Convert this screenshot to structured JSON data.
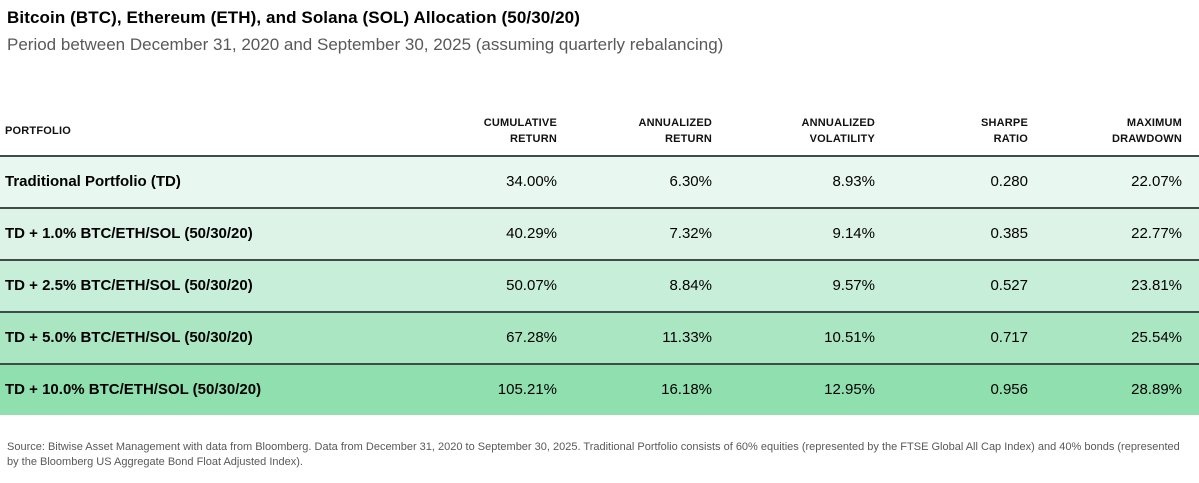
{
  "header": {
    "title": "Bitcoin (BTC), Ethereum (ETH), and Solana (SOL) Allocation (50/30/20)",
    "subtitle": "Period between December 31, 2020 and September 30, 2025 (assuming quarterly rebalancing)"
  },
  "table": {
    "columns": [
      {
        "label": "PORTFOLIO"
      },
      {
        "label": "CUMULATIVE\nRETURN"
      },
      {
        "label": "ANNUALIZED\nRETURN"
      },
      {
        "label": "ANNUALIZED\nVOLATILITY"
      },
      {
        "label": "SHARPE\nRATIO"
      },
      {
        "label": "MAXIMUM\nDRAWDOWN"
      }
    ],
    "cell_keys": [
      "portfolio",
      "cumulative_return",
      "annualized_return",
      "annualized_volatility",
      "sharpe_ratio",
      "maximum_drawdown"
    ],
    "rows": [
      {
        "portfolio": "Traditional Portfolio (TD)",
        "cumulative_return": "34.00%",
        "annualized_return": "6.30%",
        "annualized_volatility": "8.93%",
        "sharpe_ratio": "0.280",
        "maximum_drawdown": "22.07%",
        "color": "#e8f8f0"
      },
      {
        "portfolio": "TD + 1.0% BTC/ETH/SOL (50/30/20)",
        "cumulative_return": "40.29%",
        "annualized_return": "7.32%",
        "annualized_volatility": "9.14%",
        "sharpe_ratio": "0.385",
        "maximum_drawdown": "22.77%",
        "color": "#ddf3e7"
      },
      {
        "portfolio": "TD + 2.5% BTC/ETH/SOL (50/30/20)",
        "cumulative_return": "50.07%",
        "annualized_return": "8.84%",
        "annualized_volatility": "9.57%",
        "sharpe_ratio": "0.527",
        "maximum_drawdown": "23.81%",
        "color": "#c7eed8"
      },
      {
        "portfolio": "TD + 5.0% BTC/ETH/SOL (50/30/20)",
        "cumulative_return": "67.28%",
        "annualized_return": "11.33%",
        "annualized_volatility": "10.51%",
        "sharpe_ratio": "0.717",
        "maximum_drawdown": "25.54%",
        "color": "#abe6c3"
      },
      {
        "portfolio": "TD + 10.0% BTC/ETH/SOL (50/30/20)",
        "cumulative_return": "105.21%",
        "annualized_return": "16.18%",
        "annualized_volatility": "12.95%",
        "sharpe_ratio": "0.956",
        "maximum_drawdown": "28.89%",
        "color": "#8fe0ae"
      }
    ]
  },
  "footnote": "Source: Bitwise Asset Management with data from Bloomberg. Data from December 31, 2020 to September 30, 2025. Traditional Portfolio consists of 60% equities (represented by the FTSE Global All Cap Index) and 40% bonds (represented by the Bloomberg US Aggregate Bond Float Adjusted Index).",
  "colors": {
    "row_separator": "#414b47",
    "subtitle_text": "#595959",
    "footnote_text": "#595959"
  },
  "chart_data": {
    "type": "table",
    "title": "Bitcoin (BTC), Ethereum (ETH), and Solana (SOL) Allocation (50/30/20)",
    "subtitle": "Period between December 31, 2020 and September 30, 2025 (assuming quarterly rebalancing)",
    "columns": [
      "PORTFOLIO",
      "CUMULATIVE RETURN",
      "ANNUALIZED RETURN",
      "ANNUALIZED VOLATILITY",
      "SHARPE RATIO",
      "MAXIMUM DRAWDOWN"
    ],
    "rows": [
      {
        "portfolio": "Traditional Portfolio (TD)",
        "cumulative_return_pct": 34.0,
        "annualized_return_pct": 6.3,
        "annualized_volatility_pct": 8.93,
        "sharpe_ratio": 0.28,
        "maximum_drawdown_pct": 22.07
      },
      {
        "portfolio": "TD + 1.0% BTC/ETH/SOL (50/30/20)",
        "cumulative_return_pct": 40.29,
        "annualized_return_pct": 7.32,
        "annualized_volatility_pct": 9.14,
        "sharpe_ratio": 0.385,
        "maximum_drawdown_pct": 22.77
      },
      {
        "portfolio": "TD + 2.5% BTC/ETH/SOL (50/30/20)",
        "cumulative_return_pct": 50.07,
        "annualized_return_pct": 8.84,
        "annualized_volatility_pct": 9.57,
        "sharpe_ratio": 0.527,
        "maximum_drawdown_pct": 23.81
      },
      {
        "portfolio": "TD + 5.0% BTC/ETH/SOL (50/30/20)",
        "cumulative_return_pct": 67.28,
        "annualized_return_pct": 11.33,
        "annualized_volatility_pct": 10.51,
        "sharpe_ratio": 0.717,
        "maximum_drawdown_pct": 25.54
      },
      {
        "portfolio": "TD + 10.0% BTC/ETH/SOL (50/30/20)",
        "cumulative_return_pct": 105.21,
        "annualized_return_pct": 16.18,
        "annualized_volatility_pct": 12.95,
        "sharpe_ratio": 0.956,
        "maximum_drawdown_pct": 28.89
      }
    ],
    "source_note": "Source: Bitwise Asset Management with data from Bloomberg. Data from December 31, 2020 to September 30, 2025. Traditional Portfolio consists of 60% equities (represented by the FTSE Global All Cap Index) and 40% bonds (represented by the Bloomberg US Aggregate Bond Float Adjusted Index)."
  }
}
